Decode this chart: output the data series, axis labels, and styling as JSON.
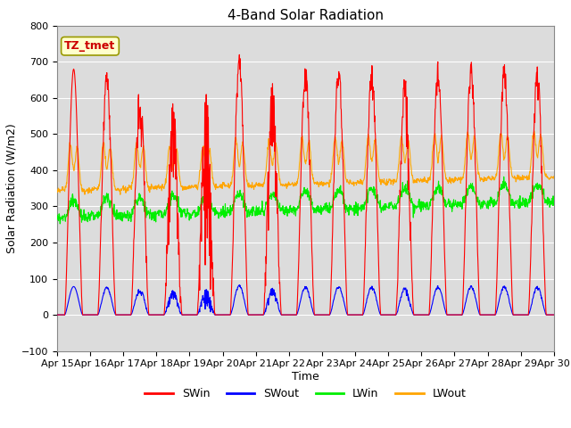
{
  "title": "4-Band Solar Radiation",
  "xlabel": "Time",
  "ylabel": "Solar Radiation (W/m2)",
  "ylim": [
    -100,
    800
  ],
  "xlim": [
    0,
    15
  ],
  "xtick_labels": [
    "Apr 15",
    "Apr 16",
    "Apr 17",
    "Apr 18",
    "Apr 19",
    "Apr 20",
    "Apr 21",
    "Apr 22",
    "Apr 23",
    "Apr 24",
    "Apr 25",
    "Apr 26",
    "Apr 27",
    "Apr 28",
    "Apr 29",
    "Apr 30"
  ],
  "annotation_text": "TZ_tmet",
  "annotation_color": "#CC0000",
  "annotation_bg": "#FFFFCC",
  "annotation_border": "#999900",
  "colors": {
    "SWin": "#FF0000",
    "SWout": "#0000FF",
    "LWin": "#00EE00",
    "LWout": "#FFA500"
  },
  "fig_bg": "#FFFFFF",
  "plot_bg": "#DCDCDC",
  "grid_color": "#FFFFFF",
  "title_fontsize": 11,
  "tick_fontsize": 8,
  "label_fontsize": 9
}
